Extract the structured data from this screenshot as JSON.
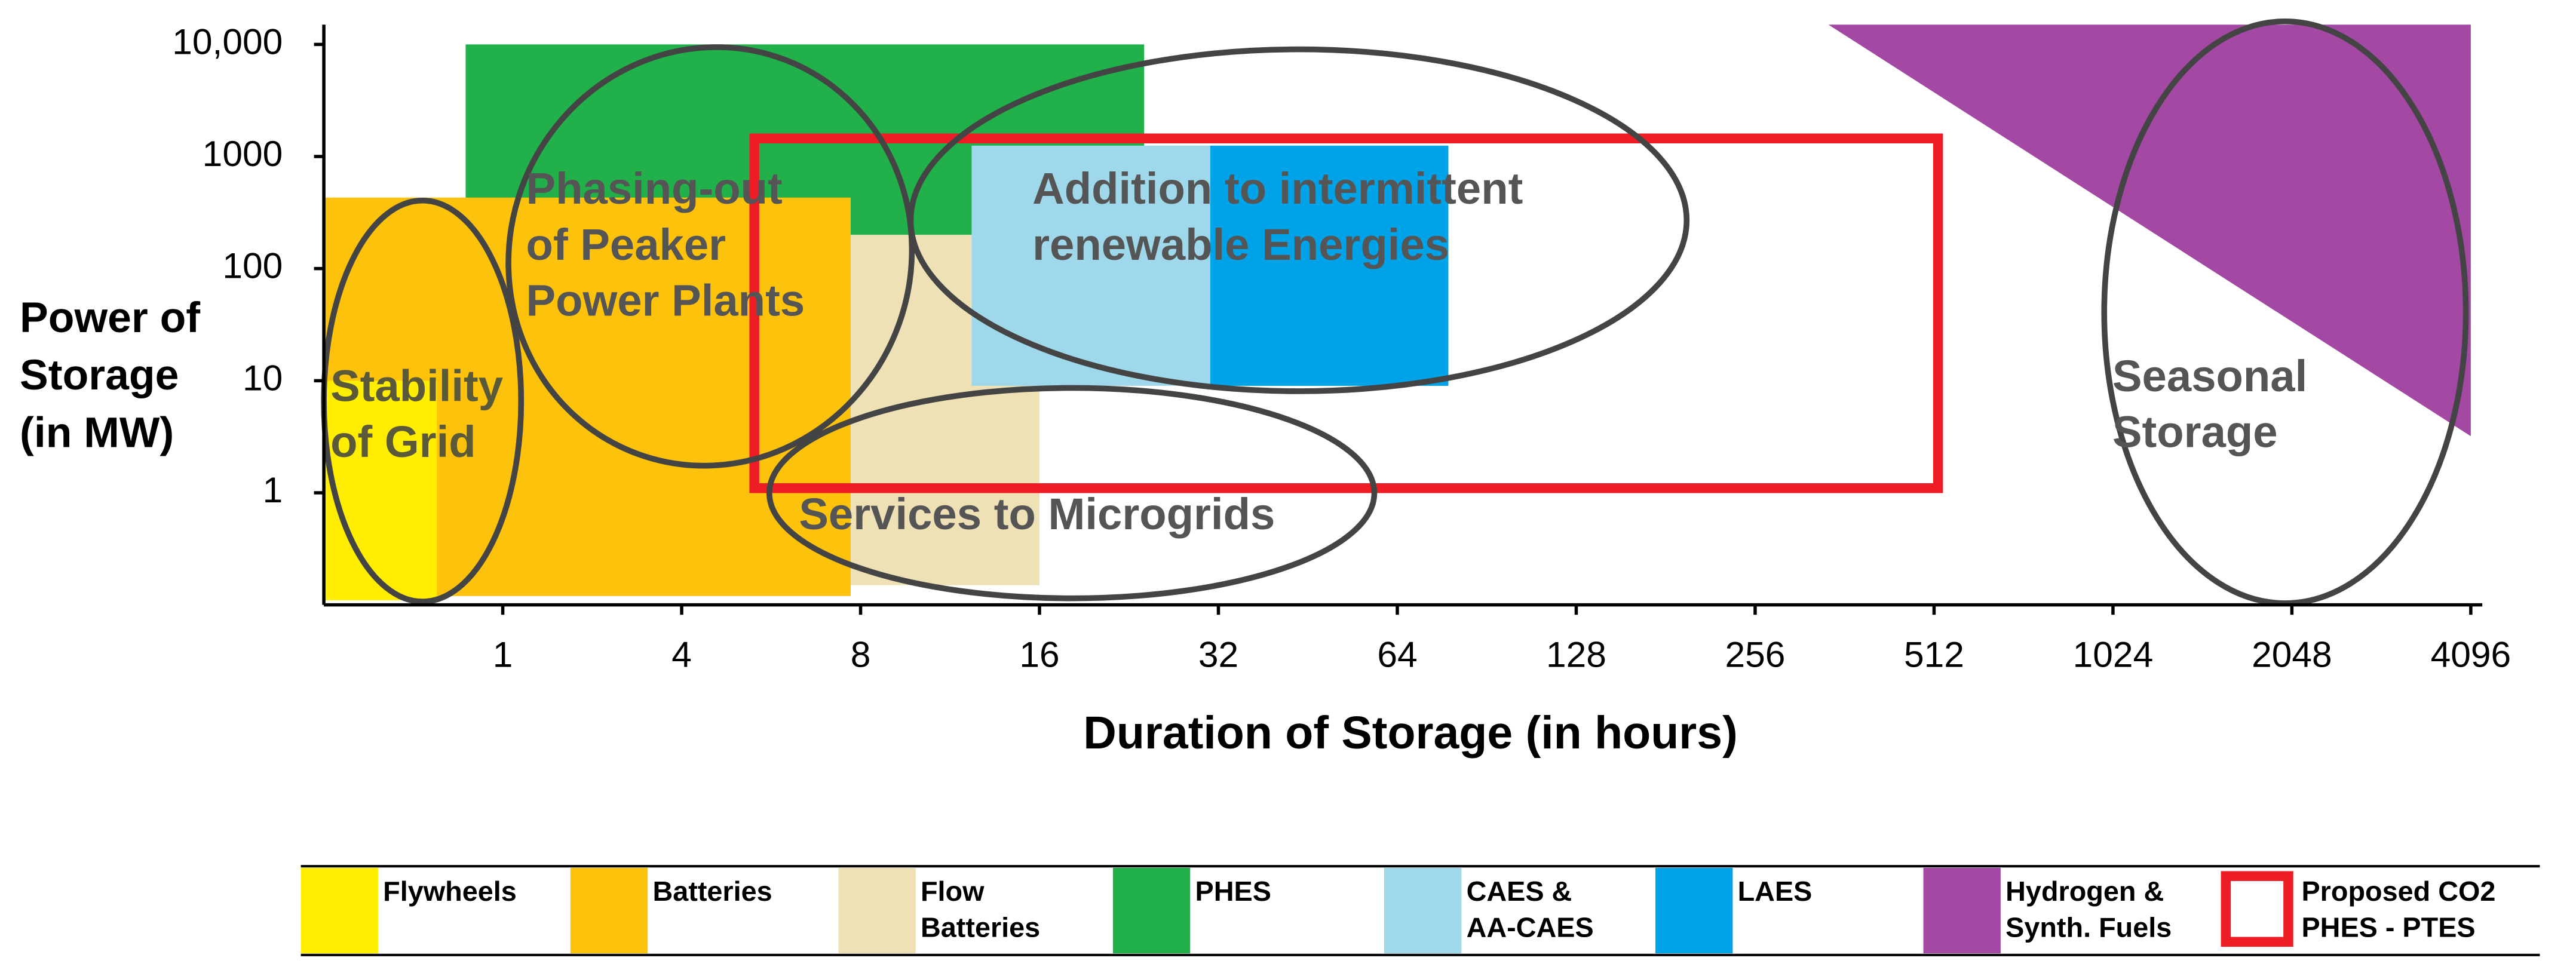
{
  "chart_data": {
    "type": "range",
    "ylabel": "Power of\nStorage\n(in MW)",
    "xlabel": "Duration of Storage (in hours)",
    "xscale": "log",
    "yscale": "log",
    "xlim": [
      0.25,
      4096
    ],
    "xticks": [
      1,
      4,
      8,
      16,
      32,
      64,
      128,
      256,
      512,
      1024,
      2048,
      4096
    ],
    "ylim": [
      0.1,
      15000
    ],
    "yticks": [
      1,
      10,
      100,
      1000,
      {
        "value": 10000,
        "label": "10,000"
      }
    ],
    "series": [
      {
        "name": "Flywheels",
        "color": "#ffee00",
        "shape": "rect",
        "x": [
          0.25,
          0.6
        ],
        "y": [
          0.11,
          10
        ]
      },
      {
        "name": "Batteries",
        "color": "#fdc20c",
        "shape": "rect",
        "x": [
          0.25,
          7.7
        ],
        "y": [
          0.12,
          430
        ]
      },
      {
        "name": "Flow\nBatteries",
        "color": "#ede1b5",
        "shape": "rect",
        "x": [
          7.7,
          16
        ],
        "y": [
          0.15,
          200
        ]
      },
      {
        "name": "PHES",
        "color": "#22b04b",
        "shape": "rect",
        "x": [
          0.75,
          24
        ],
        "y": [
          200,
          10000
        ]
      },
      {
        "name": "CAES &\nAA-CAES",
        "color": "#9fd8ea",
        "shape": "rect",
        "x": [
          12.3,
          31
        ],
        "y": [
          9,
          1250
        ]
      },
      {
        "name": "LAES",
        "color": "#00a3e8",
        "shape": "rect",
        "x": [
          31,
          78
        ],
        "y": [
          9,
          1250
        ]
      },
      {
        "name": "Hydrogen &\nSynth. Fuels",
        "color": "#a349a4",
        "shape": "polygon",
        "x": [
          340,
          4096,
          4096
        ],
        "y": [
          15000,
          15000,
          3.2
        ]
      },
      {
        "name": "Proposed CO2\nPHES - PTES",
        "color": "#ee1c25",
        "shape": "outline",
        "x": [
          5.3,
          520
        ],
        "y": [
          1.1,
          1450
        ]
      }
    ],
    "annotations": [
      "Stability\nof Grid",
      "Phasing-out\nof Peaker\nPower Plants",
      "Addition to intermittent\nrenewable Energies",
      "Services to Microgrids",
      "Seasonal\nStorage"
    ]
  }
}
